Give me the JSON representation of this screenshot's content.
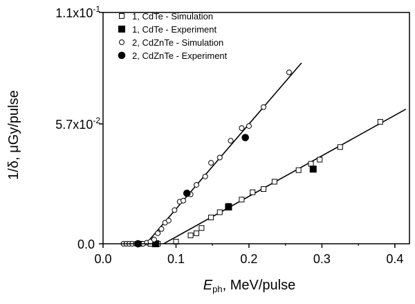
{
  "chart_data": {
    "type": "scatter",
    "xlabel_main": "E",
    "xlabel_sub": "ph",
    "xlabel_rest": ", MeV/pulse",
    "ylabel_prefix": "1/δ, ",
    "ylabel_unit": "μGy/pulse",
    "xlim": [
      0.0,
      0.42
    ],
    "ylim": [
      0.0,
      0.11
    ],
    "x_ticks": [
      {
        "value": 0.0,
        "label": "0.0"
      },
      {
        "value": 0.1,
        "label": "0.1"
      },
      {
        "value": 0.2,
        "label": "0.2"
      },
      {
        "value": 0.3,
        "label": "0.3"
      },
      {
        "value": 0.4,
        "label": "0.4"
      }
    ],
    "y_ticks": [
      {
        "value": 0.0,
        "label": "0.0",
        "exp": ""
      },
      {
        "value": 0.057,
        "label": "5.7x10",
        "exp": "-2"
      },
      {
        "value": 0.11,
        "label": "1.1x10",
        "exp": "-1"
      }
    ],
    "legend_position": "top-left",
    "series": [
      {
        "name": "1, CdTe - Simulation",
        "marker": "open-square",
        "x": [
          0.05,
          0.065,
          0.075,
          0.1,
          0.12,
          0.128,
          0.135,
          0.148,
          0.16,
          0.172,
          0.19,
          0.205,
          0.22,
          0.235,
          0.268,
          0.285,
          0.297,
          0.325,
          0.38
        ],
        "y": [
          0.0,
          0.0,
          0.0,
          0.001,
          0.004,
          0.005,
          0.0075,
          0.0125,
          0.015,
          0.018,
          0.021,
          0.0245,
          0.026,
          0.0295,
          0.035,
          0.038,
          0.04,
          0.046,
          0.058
        ]
      },
      {
        "name": "1, CdTe - Experiment",
        "marker": "filled-square",
        "x": [
          0.072,
          0.172,
          0.288
        ],
        "y": [
          0.0,
          0.0175,
          0.0355
        ]
      },
      {
        "name": "2, CdZnTe - Simulation",
        "marker": "open-circle",
        "x": [
          0.028,
          0.032,
          0.036,
          0.04,
          0.045,
          0.05,
          0.055,
          0.06,
          0.065,
          0.07,
          0.075,
          0.08,
          0.085,
          0.09,
          0.098,
          0.105,
          0.11,
          0.12,
          0.128,
          0.14,
          0.148,
          0.16,
          0.175,
          0.19,
          0.2,
          0.22,
          0.255
        ],
        "y": [
          0.0,
          0.0,
          0.0,
          0.0,
          0.0,
          0.0,
          0.0,
          0.0005,
          0.001,
          0.002,
          0.005,
          0.007,
          0.01,
          0.011,
          0.016,
          0.02,
          0.0205,
          0.0235,
          0.028,
          0.032,
          0.0385,
          0.041,
          0.049,
          0.055,
          0.056,
          0.065,
          0.0815
        ]
      },
      {
        "name": "2, CdZnTe - Experiment",
        "marker": "filled-circle",
        "x": [
          0.048,
          0.115,
          0.195
        ],
        "y": [
          0.0,
          0.024,
          0.0505
        ]
      }
    ],
    "fit_lines": [
      {
        "from": [
          0.083,
          0.0
        ],
        "to": [
          0.415,
          0.064
        ]
      },
      {
        "from": [
          0.059,
          0.0
        ],
        "to": [
          0.272,
          0.086
        ]
      }
    ]
  }
}
